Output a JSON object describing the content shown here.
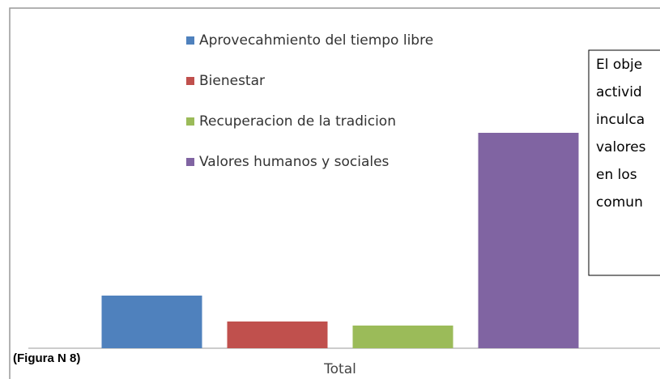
{
  "chart_data": {
    "type": "bar",
    "categories": [
      "Total"
    ],
    "series": [
      {
        "name": "Aprovecahmiento del tiempo libre",
        "color": "#4f81bd",
        "values": [
          65
        ]
      },
      {
        "name": "Bienestar",
        "color": "#c0504d",
        "values": [
          33
        ]
      },
      {
        "name": "Recuperacion de la tradicion",
        "color": "#9bbb59",
        "values": [
          28
        ]
      },
      {
        "name": "Valores humanos y sociales",
        "color": "#8064a2",
        "values": [
          266
        ]
      }
    ],
    "ylim": [
      0,
      300
    ],
    "legend": "top-left",
    "annotation": [
      "El obje",
      "activid",
      "inculca",
      "valores",
      "en los",
      "comun"
    ],
    "caption": "(Figura  N 8)"
  }
}
